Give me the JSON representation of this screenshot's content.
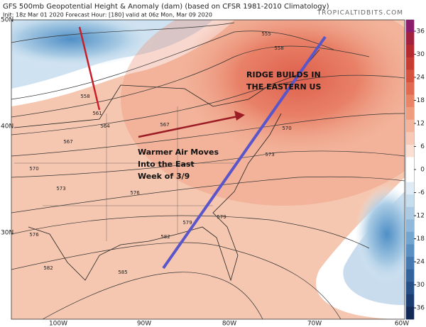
{
  "header": {
    "title": "GFS 500mb Geopotential Height & Anomaly (dam) (based on CFSR 1981-2010 Climatology)",
    "subtitle": "Init: 18z Mar 01 2020   Forecast Hour: [180]   valid at 06z Mon, Mar 09 2020",
    "source": "TROPICALTIDBITS.COM"
  },
  "latitude_labels": [
    "50N",
    "40N",
    "30N"
  ],
  "longitude_labels": [
    "100W",
    "90W",
    "80W",
    "70W",
    "60W"
  ],
  "contour_labels": [
    "555",
    "558",
    "558",
    "561",
    "564",
    "567",
    "567",
    "570",
    "570",
    "573",
    "573",
    "576",
    "576",
    "579",
    "579",
    "582",
    "582",
    "585"
  ],
  "annotations": [
    {
      "lines": [
        "RIDGE BUILDS IN",
        "THE EASTERN US"
      ]
    },
    {
      "lines": [
        "Warmer Air Moves",
        "Into the East",
        "Week of 3/9"
      ]
    }
  ],
  "colorbar": {
    "ticks": [
      36,
      30,
      24,
      18,
      12,
      6,
      0,
      -6,
      -12,
      -18,
      -24,
      -30,
      -36
    ]
  }
}
